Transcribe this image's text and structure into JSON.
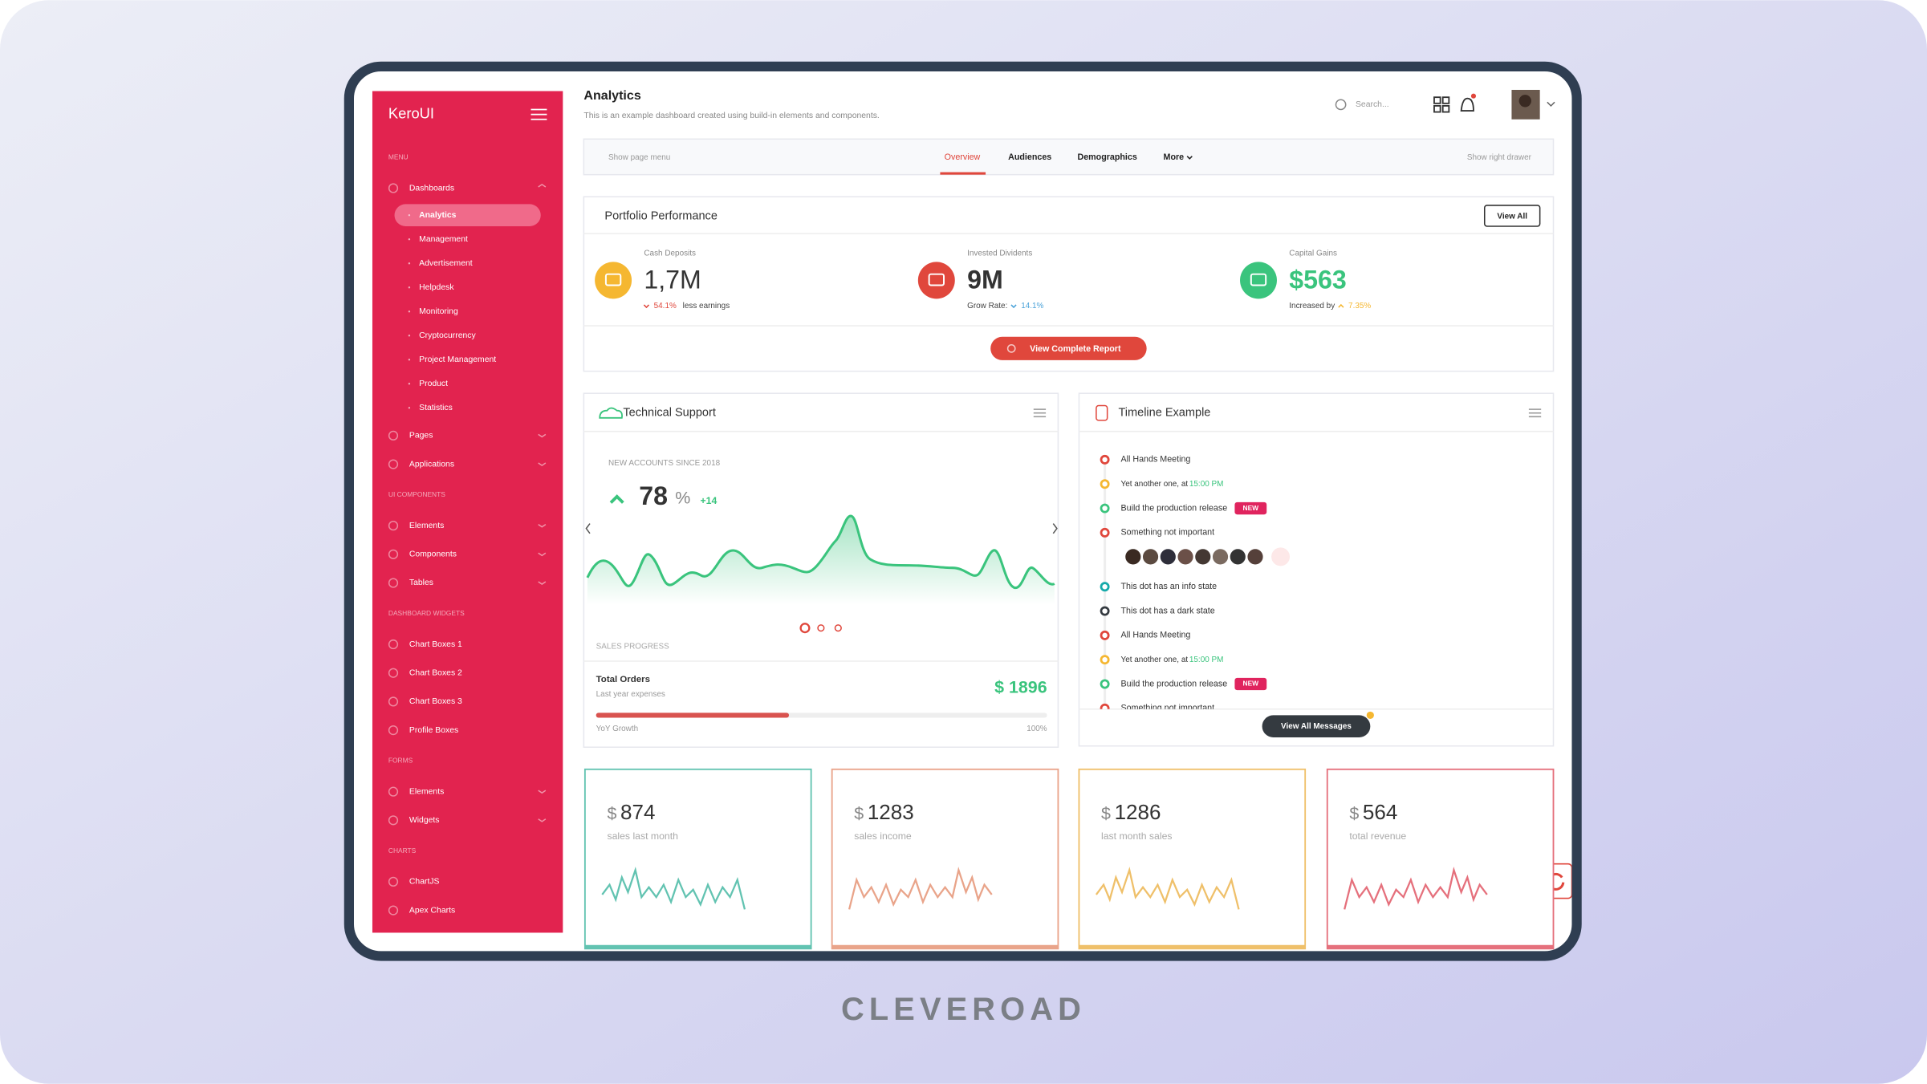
{
  "brand": "KeroUI",
  "sidebar": [
    {
      "heading": "MENU",
      "items": [
        {
          "label": "Dashboards",
          "children": [
            "Analytics",
            "Management",
            "Advertisement",
            "Helpdesk",
            "Monitoring",
            "Cryptocurrency",
            "Project Management",
            "Product",
            "Statistics"
          ]
        },
        {
          "label": "Pages"
        },
        {
          "label": "Applications"
        }
      ]
    },
    {
      "heading": "UI COMPONENTS",
      "items": [
        {
          "label": "Elements"
        },
        {
          "label": "Components"
        },
        {
          "label": "Tables"
        }
      ]
    },
    {
      "heading": "DASHBOARD WIDGETS",
      "items": [
        {
          "label": "Chart Boxes 1"
        },
        {
          "label": "Chart Boxes 2"
        },
        {
          "label": "Chart Boxes 3"
        },
        {
          "label": "Profile Boxes"
        }
      ]
    },
    {
      "heading": "FORMS",
      "items": [
        {
          "label": "Elements"
        },
        {
          "label": "Widgets"
        }
      ]
    },
    {
      "heading": "CHARTS",
      "items": [
        {
          "label": "ChartJS"
        },
        {
          "label": "Apex Charts"
        }
      ]
    }
  ],
  "header": {
    "title": "Analytics",
    "subtitle": "This is an example dashboard created using build-in elements and components.",
    "search": "Search..."
  },
  "page_nav": {
    "left": "Show page menu",
    "tabs": [
      "Overview",
      "Audiences",
      "Demographics",
      "More"
    ],
    "right": "Show right drawer"
  },
  "portfolio": {
    "title": "Portfolio Performance",
    "button": "View All",
    "report_button": "View Complete Report",
    "stats": [
      {
        "label": "Cash Deposits",
        "value": "1,7M",
        "change": "54.1%",
        "note": "less earnings",
        "color": "#f5b731"
      },
      {
        "label": "Invested Dividents",
        "value": "9M",
        "note": "Grow Rate:",
        "change": "14.1%",
        "color": "#e0473c"
      },
      {
        "label": "Capital Gains",
        "value": "$563",
        "note": "Increased by",
        "change": "7.35%",
        "color": "#3ac47d"
      }
    ]
  },
  "support": {
    "title": "Technical Support",
    "kicker": "NEW ACCOUNTS SINCE 2018",
    "value": 78,
    "unit": "%",
    "delta": "+14",
    "progress_title": "SALES PROGRESS",
    "orders": "Total Orders",
    "orders_note": "Last year expenses",
    "orders_value": "$ 1896",
    "growth": "YoY Growth",
    "growth_value": "100%"
  },
  "timeline": {
    "title": "Timeline Example",
    "button": "View All Messages",
    "items": [
      {
        "text": "All Hands Meeting",
        "color": "#e0473c"
      },
      {
        "text": "Yet another one, at ",
        "time": "15:00 PM",
        "color": "#f5b731"
      },
      {
        "text": "Build the production release",
        "badge": "NEW",
        "color": "#3ac47d"
      },
      {
        "text": "Something not important",
        "color": "#e0473c"
      },
      {
        "text": "This dot has an info state",
        "color": "#16aaaa"
      },
      {
        "text": "This dot has a dark state",
        "color": "#343a40"
      },
      {
        "text": "All Hands Meeting",
        "color": "#e0473c"
      },
      {
        "text": "Yet another one, at ",
        "time": "15:00 PM",
        "color": "#f5b731"
      },
      {
        "text": "Build the production release",
        "badge": "NEW",
        "color": "#3ac47d"
      },
      {
        "text": "Something not important",
        "color": "#e0473c"
      }
    ]
  },
  "cards": [
    {
      "currency": "$",
      "value": 874,
      "label": "sales last month",
      "color": "#62c3b1"
    },
    {
      "currency": "$",
      "value": 1283,
      "label": "sales income",
      "color": "#e9a48a"
    },
    {
      "currency": "$",
      "value": 1286,
      "label": "last month sales",
      "color": "#efc06a"
    },
    {
      "currency": "$",
      "value": 564,
      "label": "total revenue",
      "color": "#e5707c"
    }
  ],
  "footer_brand": "CLEVEROAD"
}
